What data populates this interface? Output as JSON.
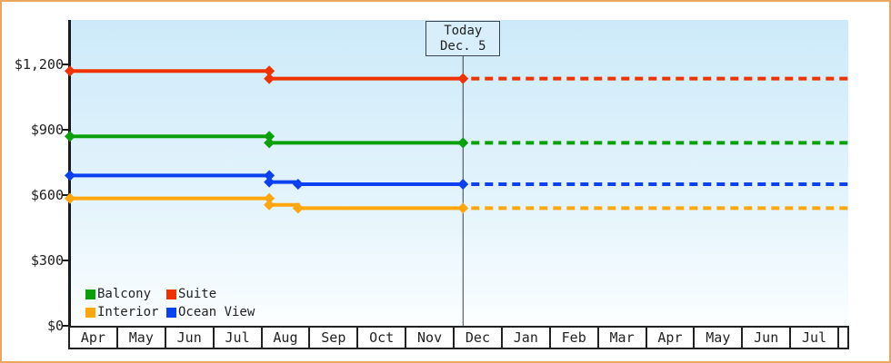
{
  "frame": {
    "border_color": "#e9a75f",
    "background": "#ffffff"
  },
  "chart_data": {
    "type": "line",
    "title": "",
    "y_axis": {
      "min": 0,
      "max": 1400,
      "ticks": [
        {
          "label": "$0",
          "value": 0
        },
        {
          "label": "$300",
          "value": 300
        },
        {
          "label": "$600",
          "value": 600
        },
        {
          "label": "$900",
          "value": 900
        },
        {
          "label": "$1,200",
          "value": 1200
        }
      ]
    },
    "x_axis": {
      "months": [
        "Apr",
        "May",
        "Jun",
        "Jul",
        "Aug",
        "Sep",
        "Oct",
        "Nov",
        "Dec",
        "Jan",
        "Feb",
        "Mar",
        "Apr",
        "May",
        "Jun",
        "Jul"
      ]
    },
    "today": {
      "line1": "Today",
      "line2": "Dec. 5",
      "x_pct": 50.5
    },
    "series": [
      {
        "name": "Suite",
        "color": "#ee3300",
        "points": [
          [
            0,
            1170
          ],
          [
            25.6,
            1170
          ],
          [
            25.6,
            1135
          ],
          [
            50.5,
            1135
          ]
        ],
        "markers": [
          [
            0,
            1170
          ],
          [
            25.6,
            1170
          ],
          [
            25.6,
            1135
          ],
          [
            50.5,
            1135
          ]
        ],
        "forecast_value": 1135
      },
      {
        "name": "Balcony",
        "color": "#0aa00a",
        "points": [
          [
            0,
            870
          ],
          [
            25.6,
            870
          ],
          [
            25.6,
            840
          ],
          [
            50.5,
            840
          ]
        ],
        "markers": [
          [
            0,
            870
          ],
          [
            25.6,
            870
          ],
          [
            25.6,
            840
          ],
          [
            50.5,
            840
          ]
        ],
        "forecast_value": 840
      },
      {
        "name": "Ocean View",
        "color": "#0c41f2",
        "points": [
          [
            0,
            690
          ],
          [
            25.6,
            690
          ],
          [
            25.6,
            660
          ],
          [
            29.3,
            660
          ],
          [
            29.3,
            650
          ],
          [
            50.5,
            650
          ]
        ],
        "markers": [
          [
            0,
            690
          ],
          [
            25.6,
            690
          ],
          [
            25.6,
            660
          ],
          [
            29.3,
            650
          ],
          [
            50.5,
            650
          ]
        ],
        "forecast_value": 650
      },
      {
        "name": "Interior",
        "color": "#ffa60d",
        "points": [
          [
            0,
            585
          ],
          [
            25.6,
            585
          ],
          [
            25.6,
            555
          ],
          [
            29.3,
            555
          ],
          [
            29.3,
            540
          ],
          [
            50.5,
            540
          ]
        ],
        "markers": [
          [
            0,
            585
          ],
          [
            25.6,
            585
          ],
          [
            25.6,
            555
          ],
          [
            29.3,
            540
          ],
          [
            50.5,
            540
          ]
        ],
        "forecast_value": 540
      }
    ],
    "legend": [
      {
        "label": "Balcony",
        "color": "#0aa00a"
      },
      {
        "label": "Suite",
        "color": "#ee3300"
      },
      {
        "label": "Interior",
        "color": "#ffa60d"
      },
      {
        "label": "Ocean View",
        "color": "#0c41f2"
      }
    ]
  }
}
